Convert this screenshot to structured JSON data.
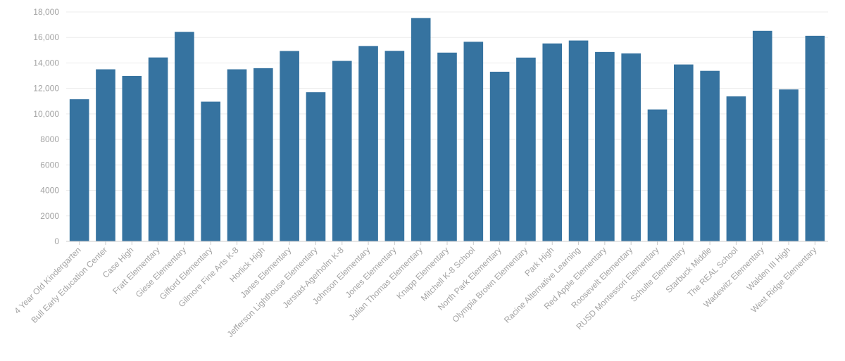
{
  "chart_data": {
    "type": "bar",
    "title": "",
    "xlabel": "",
    "ylabel": "",
    "ylim": [
      0,
      18000
    ],
    "yticks": [
      0,
      2000,
      4000,
      6000,
      8000,
      10000,
      12000,
      14000,
      16000,
      18000
    ],
    "ytick_labels": [
      "0",
      "2000",
      "4000",
      "6000",
      "8000",
      "10,000",
      "12,000",
      "14,000",
      "16,000",
      "18,000"
    ],
    "grid": true,
    "legend": "none",
    "bar_color": "#3673a0",
    "categories": [
      "4 Year Old Kindergarten",
      "Bull Early Education Center",
      "Case High",
      "Fratt Elementary",
      "Giese Elementary",
      "Gifford Elementary",
      "Gilmore Fine Arts K-8",
      "Horlick High",
      "Janes Elementary",
      "Jefferson Lighthouse Elementary",
      "Jerstad-Agerholm K-8",
      "Johnson Elementary",
      "Jones Elementary",
      "Julian Thomas Elementary",
      "Knapp Elementary",
      "Mitchell K-8 School",
      "North Park Elementary",
      "Olympia Brown Elementary",
      "Park High",
      "Racine Alternative Learning",
      "Red Apple Elementary",
      "Roosevelt Elementary",
      "RUSD Montessori Elementary",
      "Schulte Elementary",
      "Starbuck Middle",
      "The REAL School",
      "Wadewitz Elementary",
      "Walden III High",
      "West Ridge Elementary"
    ],
    "values": [
      11150,
      13500,
      12980,
      14430,
      16440,
      10960,
      13500,
      13590,
      14940,
      11700,
      14160,
      15330,
      14950,
      17520,
      14810,
      15660,
      13310,
      14420,
      15530,
      15760,
      14860,
      14750,
      10350,
      13880,
      13380,
      11380,
      16520,
      11920,
      16130
    ]
  }
}
